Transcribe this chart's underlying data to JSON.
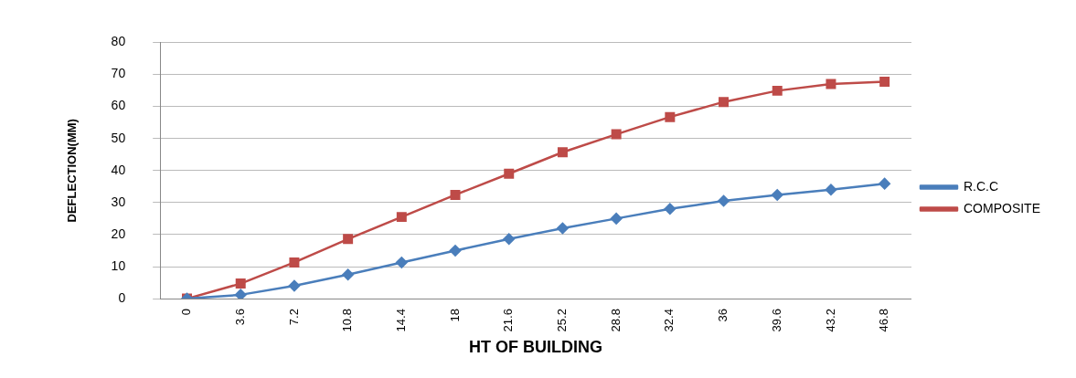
{
  "chart_data": {
    "type": "line",
    "xlabel": "HT OF BUILDING",
    "ylabel": "DEFLECTION(MM)",
    "categories": [
      "0",
      "3.6",
      "7.2",
      "10.8",
      "14.4",
      "18",
      "21.6",
      "25.2",
      "28.8",
      "32.4",
      "36",
      "39.6",
      "43.2",
      "46.8"
    ],
    "series": [
      {
        "name": "R.C.C",
        "color": "#4a7ebb",
        "marker": "diamond",
        "values": [
          0,
          1.2,
          4,
          7.5,
          11.3,
          15,
          18.6,
          22,
          25,
          28,
          30.5,
          32.4,
          34,
          35.9
        ]
      },
      {
        "name": "COMPOSITE",
        "color": "#be4b48",
        "marker": "square",
        "values": [
          0,
          4.7,
          11.3,
          18.6,
          25.5,
          32.4,
          39,
          45.7,
          51.3,
          56.7,
          61.4,
          64.9,
          67,
          67.7
        ]
      }
    ],
    "ylim": [
      0,
      80
    ],
    "yticks": [
      0,
      10,
      20,
      30,
      40,
      50,
      60,
      70,
      80
    ],
    "grid": "y",
    "legend": "right"
  }
}
